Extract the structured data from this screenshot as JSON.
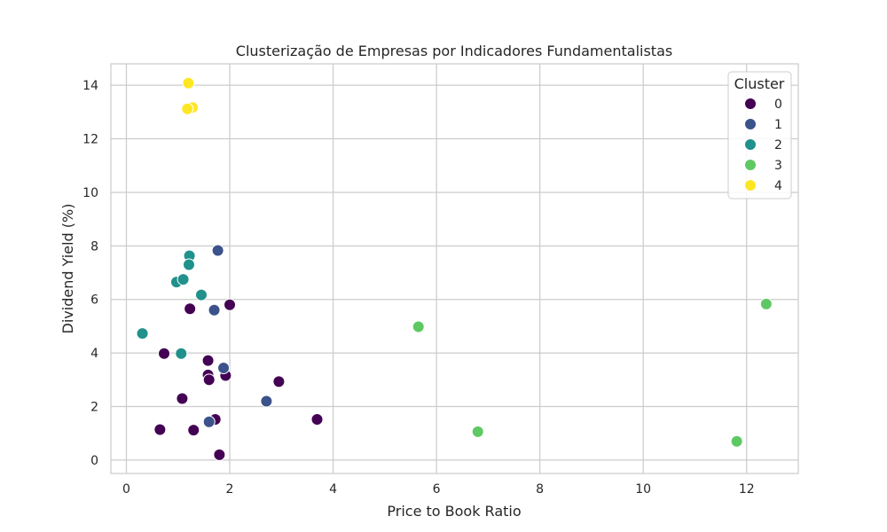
{
  "chart_data": {
    "type": "scatter",
    "title": "Clusterização de Empresas por Indicadores Fundamentalistas",
    "xlabel": "Price to Book Ratio",
    "ylabel": "Dividend Yield (%)",
    "xlim": [
      -0.3,
      13.0
    ],
    "ylim": [
      -0.5,
      14.8
    ],
    "xticks": [
      0,
      2,
      4,
      6,
      8,
      10,
      12
    ],
    "yticks": [
      0,
      2,
      4,
      6,
      8,
      10,
      12,
      14
    ],
    "grid": true,
    "legend": {
      "title": "Cluster",
      "placement": "top-right",
      "entries": [
        "0",
        "1",
        "2",
        "3",
        "4"
      ]
    },
    "series": [
      {
        "name": "0",
        "color": "#440154",
        "points": [
          [
            1.23,
            5.65
          ],
          [
            2.0,
            5.8
          ],
          [
            0.73,
            3.98
          ],
          [
            1.58,
            3.72
          ],
          [
            1.58,
            3.18
          ],
          [
            1.6,
            3.0
          ],
          [
            1.92,
            3.16
          ],
          [
            2.95,
            2.93
          ],
          [
            1.08,
            2.3
          ],
          [
            1.72,
            1.52
          ],
          [
            3.69,
            1.52
          ],
          [
            0.65,
            1.14
          ],
          [
            1.3,
            1.12
          ],
          [
            1.8,
            0.2
          ]
        ]
      },
      {
        "name": "1",
        "color": "#3b528b",
        "points": [
          [
            1.77,
            7.83
          ],
          [
            1.7,
            5.6
          ],
          [
            1.88,
            3.44
          ],
          [
            2.71,
            2.2
          ],
          [
            1.6,
            1.43
          ]
        ]
      },
      {
        "name": "2",
        "color": "#21918c",
        "points": [
          [
            1.22,
            7.63
          ],
          [
            1.21,
            7.3
          ],
          [
            0.97,
            6.65
          ],
          [
            1.1,
            6.75
          ],
          [
            1.45,
            6.17
          ],
          [
            0.31,
            4.73
          ],
          [
            1.06,
            3.98
          ]
        ]
      },
      {
        "name": "3",
        "color": "#5ec962",
        "points": [
          [
            5.65,
            4.98
          ],
          [
            12.38,
            5.83
          ],
          [
            6.8,
            1.06
          ],
          [
            11.81,
            0.7
          ]
        ]
      },
      {
        "name": "4",
        "color": "#fde725",
        "points": [
          [
            1.2,
            14.08
          ],
          [
            1.28,
            13.17
          ],
          [
            1.18,
            13.12
          ]
        ]
      }
    ]
  }
}
